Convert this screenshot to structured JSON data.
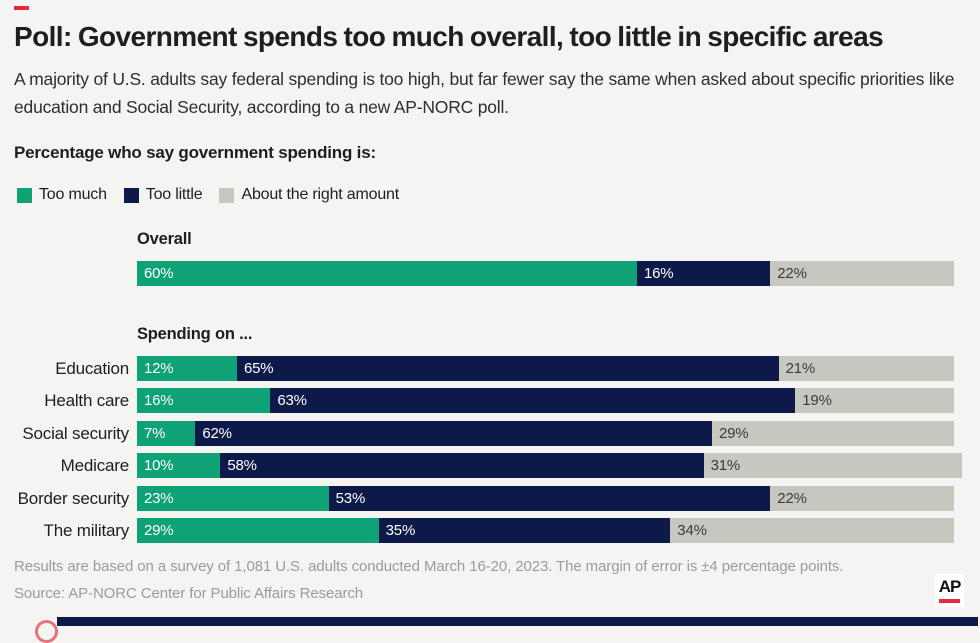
{
  "colors": {
    "background": "#f4f4f2",
    "too_much_green": "#0fa276",
    "too_little_navy": "#0d1a49",
    "about_right_gray": "#c7c7bf",
    "accent_red": "#e6293e",
    "footer_text": "#9b9b99"
  },
  "header": {
    "title": "Poll: Government spends too much overall, too little in specific areas",
    "subtitle": "A majority of U.S. adults say federal spending is too high, but far fewer say the same when asked about specific priorities like education and Social Security, according to a new AP-NORC poll."
  },
  "section_label": "Percentage who say government spending is:",
  "legend": {
    "items": [
      {
        "label": "Too much",
        "color": "#0fa276"
      },
      {
        "label": "Too little",
        "color": "#0d1a49"
      },
      {
        "label": "About the right amount",
        "color": "#c7c7bf"
      }
    ]
  },
  "chart": {
    "overall_label": "Overall",
    "group_label": "Spending on ..."
  },
  "chart_data": {
    "type": "bar",
    "orientation": "horizontal",
    "stacked": true,
    "unit": "%",
    "xlim": [
      0,
      100
    ],
    "categories": [
      "Overall",
      "Education",
      "Health care",
      "Social security",
      "Medicare",
      "Border security",
      "The military"
    ],
    "series": [
      {
        "name": "Too much",
        "color": "#0fa276",
        "values": [
          60,
          12,
          16,
          7,
          10,
          23,
          29
        ]
      },
      {
        "name": "Too little",
        "color": "#0d1a49",
        "values": [
          16,
          65,
          63,
          62,
          58,
          53,
          35
        ]
      },
      {
        "name": "About the right amount",
        "color": "#c7c7bf",
        "values": [
          22,
          21,
          19,
          29,
          31,
          22,
          34
        ]
      }
    ],
    "value_label_format": "{value}%",
    "legend_position": "top"
  },
  "footer": {
    "note": "Results are based on a survey of 1,081 U.S. adults conducted March 16-20, 2023. The margin of error is ±4 percentage points.",
    "source": "Source: AP-NORC Center for Public Affairs Research",
    "logo_text": "AP"
  }
}
